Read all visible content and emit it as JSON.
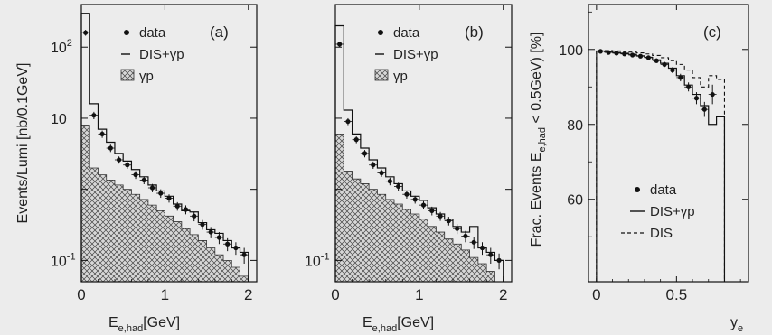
{
  "chart_data": [
    {
      "type": "histogram",
      "panel_label": "(a)",
      "xlabel": "E",
      "xlabel_sub": "e,had",
      "xlabel_unit": "[GeV]",
      "ylabel": "Events/Lumi [nb/0.1GeV]",
      "log_y": true,
      "xlim": [
        0,
        2.1
      ],
      "ylim_log10": [
        -1.3,
        2.6
      ],
      "x_ticks": [
        {
          "v": 0,
          "label": "0"
        },
        {
          "v": 1,
          "label": "1"
        },
        {
          "v": 2,
          "label": "2"
        }
      ],
      "y_ticks": [
        {
          "exp": -1,
          "base": "10",
          "sup": "-1"
        },
        {
          "exp": 1,
          "base": "10",
          "sup": ""
        },
        {
          "exp": 2,
          "base": "10",
          "sup": "2"
        }
      ],
      "legend": [
        {
          "kind": "dot",
          "label": "data"
        },
        {
          "kind": "line",
          "label": "DIS+γp"
        },
        {
          "kind": "hatch",
          "label": "γp"
        }
      ],
      "bin_edges": [
        0,
        0.1,
        0.2,
        0.3,
        0.4,
        0.5,
        0.6,
        0.7,
        0.8,
        0.9,
        1.0,
        1.1,
        1.2,
        1.3,
        1.4,
        1.5,
        1.6,
        1.7,
        1.8,
        1.9,
        2.0
      ],
      "series": [
        {
          "name": "data",
          "values": [
            160,
            11,
            6.0,
            3.8,
            2.6,
            2.2,
            1.6,
            1.35,
            1.05,
            0.88,
            0.75,
            0.58,
            0.52,
            0.42,
            0.32,
            0.25,
            0.21,
            0.17,
            0.15,
            0.12
          ],
          "errors": [
            15,
            1.3,
            0.7,
            0.45,
            0.3,
            0.26,
            0.2,
            0.17,
            0.14,
            0.12,
            0.1,
            0.08,
            0.075,
            0.065,
            0.05,
            0.045,
            0.04,
            0.035,
            0.03,
            0.03
          ]
        },
        {
          "name": "DIS+γp",
          "values": [
            300,
            16,
            7.0,
            4.6,
            3.2,
            2.5,
            1.9,
            1.5,
            1.15,
            0.95,
            0.8,
            0.62,
            0.5,
            0.48,
            0.34,
            0.27,
            0.24,
            0.19,
            0.15,
            0.13
          ]
        },
        {
          "name": "γp",
          "values": [
            8.0,
            2.0,
            1.6,
            1.35,
            1.15,
            1.0,
            0.85,
            0.72,
            0.6,
            0.5,
            0.42,
            0.35,
            0.28,
            0.23,
            0.19,
            0.15,
            0.12,
            0.1,
            0.08,
            0.06
          ]
        }
      ]
    },
    {
      "type": "histogram",
      "panel_label": "(b)",
      "xlabel": "E",
      "xlabel_sub": "e,had",
      "xlabel_unit": "[GeV]",
      "log_y": true,
      "xlim": [
        0,
        2.1
      ],
      "ylim_log10": [
        -1.3,
        2.6
      ],
      "x_ticks": [
        {
          "v": 0,
          "label": "0"
        },
        {
          "v": 1,
          "label": "1"
        },
        {
          "v": 2,
          "label": "2"
        }
      ],
      "y_ticks": [
        {
          "exp": -1,
          "base": "10",
          "sup": "-1"
        }
      ],
      "legend": [
        {
          "kind": "dot",
          "label": "data"
        },
        {
          "kind": "line",
          "label": "DIS+γp"
        },
        {
          "kind": "hatch",
          "label": "γp"
        }
      ],
      "bin_edges": [
        0,
        0.1,
        0.2,
        0.3,
        0.4,
        0.5,
        0.6,
        0.7,
        0.8,
        0.9,
        1.0,
        1.1,
        1.2,
        1.3,
        1.4,
        1.5,
        1.6,
        1.7,
        1.8,
        1.9,
        2.0
      ],
      "series": [
        {
          "name": "data",
          "values": [
            110,
            9.0,
            5.0,
            3.2,
            2.2,
            1.7,
            1.3,
            1.1,
            0.85,
            0.72,
            0.6,
            0.5,
            0.42,
            0.36,
            0.28,
            0.22,
            0.18,
            0.15,
            0.12,
            0.1
          ],
          "errors": [
            10,
            1.0,
            0.55,
            0.38,
            0.26,
            0.2,
            0.16,
            0.14,
            0.11,
            0.09,
            0.08,
            0.07,
            0.06,
            0.05,
            0.045,
            0.04,
            0.035,
            0.03,
            0.03,
            0.025
          ]
        },
        {
          "name": "DIS+γp",
          "values": [
            200,
            13,
            6.0,
            3.8,
            2.6,
            2.0,
            1.5,
            1.2,
            0.95,
            0.8,
            0.7,
            0.55,
            0.45,
            0.38,
            0.3,
            0.25,
            0.3,
            0.15,
            0.13,
            0.1
          ]
        },
        {
          "name": "γp",
          "values": [
            6.0,
            1.8,
            1.4,
            1.2,
            1.0,
            0.85,
            0.72,
            0.62,
            0.52,
            0.45,
            0.38,
            0.3,
            0.25,
            0.2,
            0.17,
            0.14,
            0.11,
            0.09,
            0.07,
            0.05
          ]
        }
      ]
    },
    {
      "type": "line",
      "panel_label": "(c)",
      "xlabel": "y",
      "xlabel_sub": "e",
      "ylabel": "Frac. Events E",
      "ylabel_sub": "e,had",
      "ylabel_rest": " < 0.5GeV) [%]",
      "xlim": [
        -0.05,
        0.95
      ],
      "ylim": [
        38,
        112
      ],
      "x_ticks": [
        {
          "v": 0,
          "label": "0"
        },
        {
          "v": 0.5,
          "label": "0.5"
        }
      ],
      "y_ticks": [
        {
          "v": 60,
          "label": "60"
        },
        {
          "v": 80,
          "label": "80"
        },
        {
          "v": 100,
          "label": "100"
        }
      ],
      "legend": [
        {
          "kind": "dot",
          "label": "data"
        },
        {
          "kind": "line",
          "label": "DIS+γp"
        },
        {
          "kind": "dash",
          "label": "DIS"
        }
      ],
      "bin_edges": [
        0,
        0.05,
        0.1,
        0.15,
        0.2,
        0.25,
        0.3,
        0.35,
        0.4,
        0.45,
        0.5,
        0.55,
        0.6,
        0.65,
        0.7,
        0.75,
        0.8
      ],
      "series": [
        {
          "name": "data",
          "x": [
            0.025,
            0.075,
            0.125,
            0.175,
            0.225,
            0.275,
            0.325,
            0.375,
            0.425,
            0.475,
            0.525,
            0.575,
            0.625,
            0.675,
            0.725
          ],
          "values": [
            99.5,
            99.2,
            99.0,
            98.8,
            98.5,
            98.2,
            97.8,
            97.0,
            96.0,
            94.5,
            92.5,
            90.0,
            87.0,
            84.0,
            88.0
          ],
          "errors": [
            0.4,
            0.4,
            0.4,
            0.4,
            0.5,
            0.5,
            0.5,
            0.6,
            0.7,
            0.8,
            1.0,
            1.2,
            1.6,
            2.0,
            2.6
          ]
        },
        {
          "name": "DIS+γp",
          "values": [
            99.6,
            99.4,
            99.2,
            99.0,
            98.7,
            98.3,
            97.9,
            97.2,
            96.3,
            95.0,
            93.0,
            90.5,
            88.0,
            85.0,
            80.0,
            82.0,
            0
          ]
        },
        {
          "name": "DIS",
          "values": [
            99.8,
            99.7,
            99.6,
            99.5,
            99.3,
            99.1,
            98.8,
            98.4,
            97.8,
            97.0,
            96.0,
            94.5,
            92.5,
            90.0,
            93.0,
            92.0
          ]
        }
      ]
    }
  ]
}
